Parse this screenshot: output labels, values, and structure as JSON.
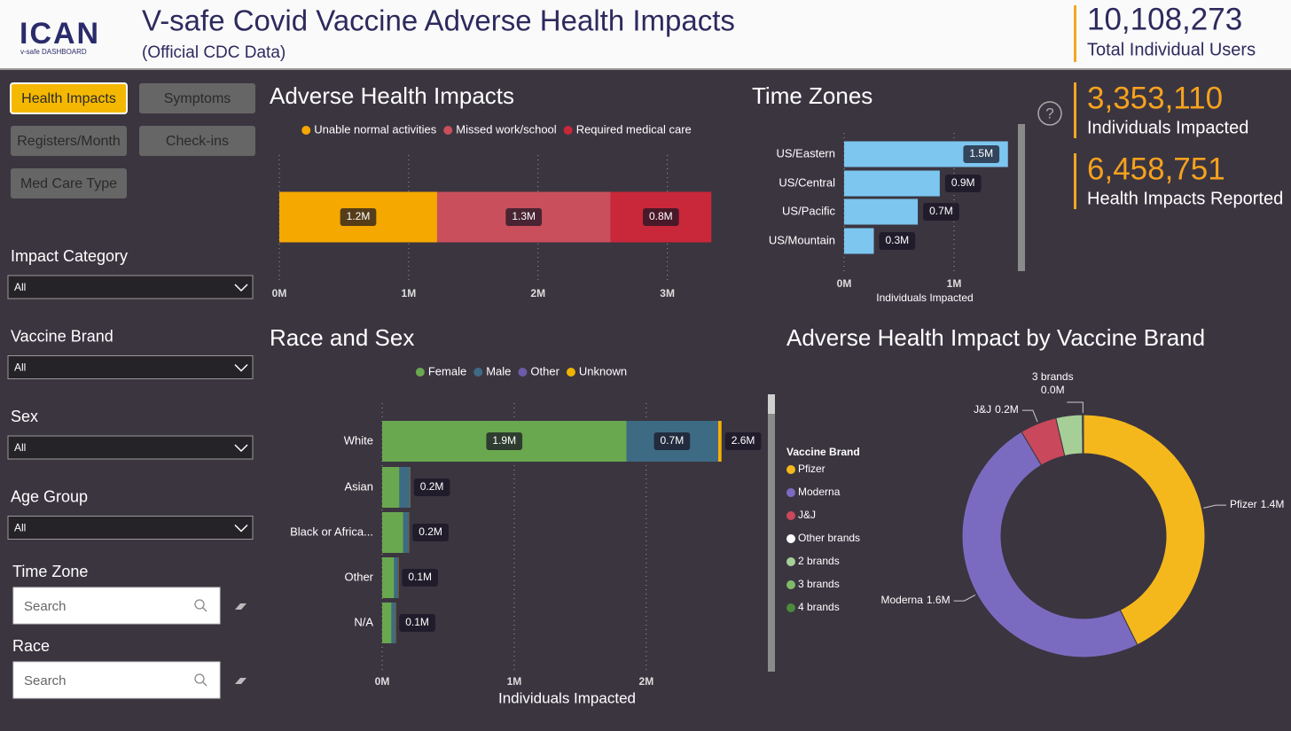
{
  "header": {
    "logo": "ICAN",
    "logo_sub": "v-safe DASHBOARD",
    "title": "V-safe Covid Vaccine Adverse Health Impacts",
    "subtitle": "(Official CDC Data)",
    "total_value": "10,108,273",
    "total_label": "Total Individual Users"
  },
  "kpis": [
    {
      "value": "3,353,110",
      "label": "Individuals Impacted"
    },
    {
      "value": "6,458,751",
      "label": "Health Impacts Reported"
    }
  ],
  "nav": [
    {
      "label": "Health Impacts",
      "active": true
    },
    {
      "label": "Symptoms",
      "active": false
    },
    {
      "label": "Registers/Month",
      "active": false
    },
    {
      "label": "Check-ins",
      "active": false
    },
    {
      "label": "Med Care Type",
      "active": false
    }
  ],
  "filters": [
    {
      "label": "Impact Category",
      "value": "All"
    },
    {
      "label": "Vaccine Brand",
      "value": "All"
    },
    {
      "label": "Sex",
      "value": "All"
    },
    {
      "label": "Age Group",
      "value": "All"
    }
  ],
  "searches": [
    {
      "label": "Time Zone",
      "placeholder": "Search"
    },
    {
      "label": "Race",
      "placeholder": "Search"
    }
  ],
  "chart_data": [
    {
      "type": "stacked-bar-h",
      "title": "Adverse Health Impacts",
      "categories": [
        null
      ],
      "series": [
        {
          "name": "Unable normal activities",
          "color": "#f5a800",
          "values": [
            1220000
          ],
          "value_labels": [
            "1.2M"
          ]
        },
        {
          "name": "Missed work/school",
          "color": "#c94f5c",
          "values": [
            1340000
          ],
          "value_labels": [
            "1.3M"
          ]
        },
        {
          "name": "Required medical care",
          "color": "#c9283a",
          "values": [
            780000
          ],
          "value_labels": [
            "0.8M"
          ]
        }
      ],
      "xlim": [
        0,
        3400000
      ],
      "xticks": [
        {
          "value": 0,
          "label": "0M"
        },
        {
          "value": 1000000,
          "label": "1M"
        },
        {
          "value": 2000000,
          "label": "2M"
        },
        {
          "value": 3000000,
          "label": "3M"
        }
      ],
      "grid": true
    },
    {
      "type": "bar-h",
      "title": "Time Zones",
      "categories": [
        "US/Eastern",
        "US/Central",
        "US/Pacific",
        "US/Mountain"
      ],
      "values": [
        1490000,
        870000,
        670000,
        270000
      ],
      "value_labels": [
        "1.5M",
        "0.9M",
        "0.7M",
        "0.3M"
      ],
      "color": "#7cc6f0",
      "xlim": [
        0,
        1500000
      ],
      "xticks": [
        {
          "value": 0,
          "label": "0M"
        },
        {
          "value": 1000000,
          "label": "1M"
        }
      ],
      "xlabel": "Individuals Impacted",
      "grid": true
    },
    {
      "type": "stacked-bar-h",
      "title": "Race and Sex",
      "categories": [
        "White",
        "Asian",
        "Black or Africa...",
        "Other",
        "N/A"
      ],
      "series": [
        {
          "name": "Female",
          "color": "#6aa84f",
          "values": [
            1850000,
            130000,
            160000,
            90000,
            70000
          ],
          "value_labels": [
            "1.9M",
            null,
            null,
            null,
            null
          ]
        },
        {
          "name": "Male",
          "color": "#3d6b84",
          "values": [
            690000,
            80000,
            40000,
            30000,
            30000
          ],
          "value_labels": [
            "0.7M",
            null,
            null,
            null,
            null
          ]
        },
        {
          "name": "Other",
          "color": "#6b5ba8",
          "values": [
            5000,
            1000,
            1000,
            1000,
            500
          ]
        },
        {
          "name": "Unknown",
          "color": "#f0b400",
          "values": [
            25000,
            2000,
            2000,
            2000,
            2000
          ]
        }
      ],
      "totals": [
        2570000,
        213000,
        203000,
        123000,
        102500
      ],
      "total_labels": [
        "2.6M",
        "0.2M",
        "0.2M",
        "0.1M",
        "0.1M"
      ],
      "xlim": [
        0,
        2800000
      ],
      "xticks": [
        {
          "value": 0,
          "label": "0M"
        },
        {
          "value": 1000000,
          "label": "1M"
        },
        {
          "value": 2000000,
          "label": "2M"
        }
      ],
      "xlabel": "Individuals Impacted",
      "grid": true
    },
    {
      "type": "donut",
      "title": "Adverse Health Impact by Vaccine Brand",
      "legend_title": "Vaccine Brand",
      "categories": [
        "Pfizer",
        "Moderna",
        "J&J",
        "Other brands",
        "2 brands",
        "3 brands",
        "4 brands"
      ],
      "colors": [
        "#f5b81c",
        "#7b6bc0",
        "#c9485b",
        "#ffffff",
        "#a6cf98",
        "#7dbb6a",
        "#4b8a3b"
      ],
      "values": [
        1400000,
        1600000,
        160000,
        null,
        115000,
        5000,
        null
      ],
      "value_labels": [
        "1.4M",
        "1.6M",
        "0.2M",
        null,
        null,
        "0.0M",
        null
      ]
    }
  ]
}
